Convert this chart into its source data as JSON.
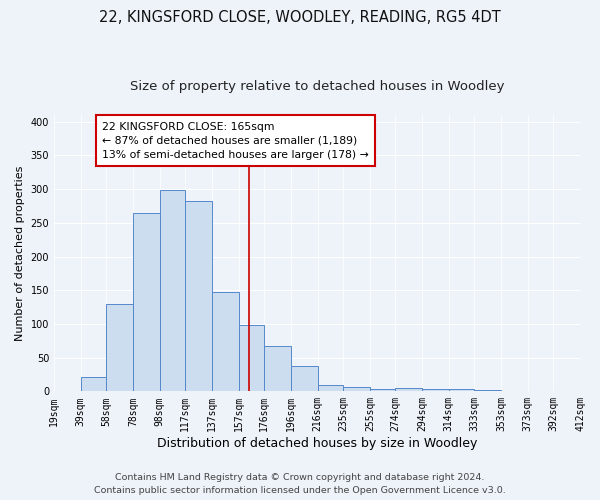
{
  "title": "22, KINGSFORD CLOSE, WOODLEY, READING, RG5 4DT",
  "subtitle": "Size of property relative to detached houses in Woodley",
  "xlabel": "Distribution of detached houses by size in Woodley",
  "ylabel": "Number of detached properties",
  "bin_labels": [
    "19sqm",
    "39sqm",
    "58sqm",
    "78sqm",
    "98sqm",
    "117sqm",
    "137sqm",
    "157sqm",
    "176sqm",
    "196sqm",
    "216sqm",
    "235sqm",
    "255sqm",
    "274sqm",
    "294sqm",
    "314sqm",
    "333sqm",
    "353sqm",
    "373sqm",
    "392sqm",
    "412sqm"
  ],
  "bar_values": [
    0,
    21,
    130,
    265,
    298,
    283,
    148,
    98,
    68,
    37,
    10,
    6,
    3,
    5,
    4,
    3,
    2,
    1,
    0,
    1
  ],
  "bin_edges": [
    19,
    39,
    58,
    78,
    98,
    117,
    137,
    157,
    176,
    196,
    216,
    235,
    255,
    274,
    294,
    314,
    333,
    353,
    373,
    392,
    412
  ],
  "bar_color": "#ccddf0",
  "bar_edge_color": "#5588cc",
  "vline_x": 165,
  "vline_color": "#cc0000",
  "ylim": [
    0,
    410
  ],
  "yticks": [
    0,
    50,
    100,
    150,
    200,
    250,
    300,
    350,
    400
  ],
  "annotation_text": "22 KINGSFORD CLOSE: 165sqm\n← 87% of detached houses are smaller (1,189)\n13% of semi-detached houses are larger (178) →",
  "annotation_box_facecolor": "#ffffff",
  "annotation_box_edgecolor": "#cc0000",
  "footer_line1": "Contains HM Land Registry data © Crown copyright and database right 2024.",
  "footer_line2": "Contains public sector information licensed under the Open Government Licence v3.0.",
  "background_color": "#eef2f9",
  "grid_color": "#ffffff",
  "title_fontsize": 10.5,
  "subtitle_fontsize": 9.5,
  "xlabel_fontsize": 9,
  "ylabel_fontsize": 8,
  "tick_fontsize": 7,
  "annot_fontsize": 7.8,
  "footer_fontsize": 6.8
}
